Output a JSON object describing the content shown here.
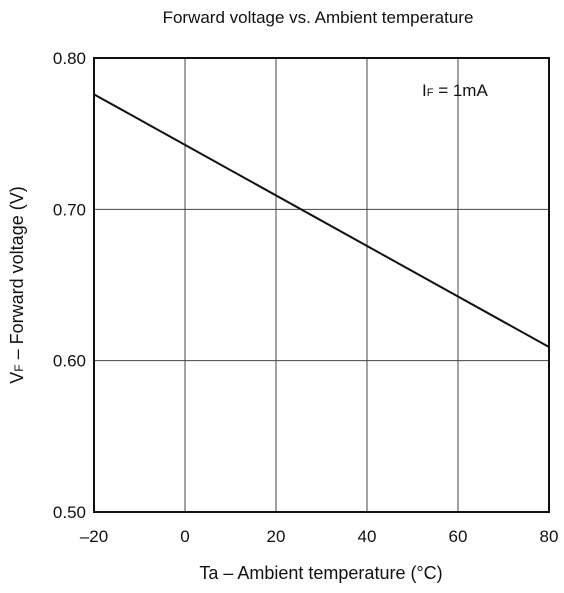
{
  "chart_data": {
    "type": "line",
    "title": "Forward voltage vs. Ambient temperature",
    "xlabel": "Ta – Ambient temperature (°C)",
    "ylabel": "VF – Forward voltage (V)",
    "ylabel_parts": {
      "main": "V",
      "sub": "F",
      "rest": " – Forward voltage (V)"
    },
    "xlim": [
      -20,
      80
    ],
    "ylim": [
      0.5,
      0.8
    ],
    "grid": true,
    "x_ticks": [
      -20,
      0,
      20,
      40,
      60,
      80
    ],
    "x_tick_labels": [
      "–20",
      "0",
      "20",
      "40",
      "60",
      "80"
    ],
    "y_ticks": [
      0.5,
      0.6,
      0.7,
      0.8
    ],
    "y_tick_labels": [
      "0.50",
      "0.60",
      "0.70",
      "0.80"
    ],
    "series": [
      {
        "x": [
          -20,
          80
        ],
        "y": [
          0.776,
          0.609
        ]
      }
    ],
    "annotation": {
      "text": "IF = 1mA",
      "main": "I",
      "sub": "F",
      "rest": " = 1mA",
      "position": "top-right"
    },
    "colors": {
      "line": "#111111",
      "grid": "#444444",
      "axes": "#111111"
    }
  }
}
